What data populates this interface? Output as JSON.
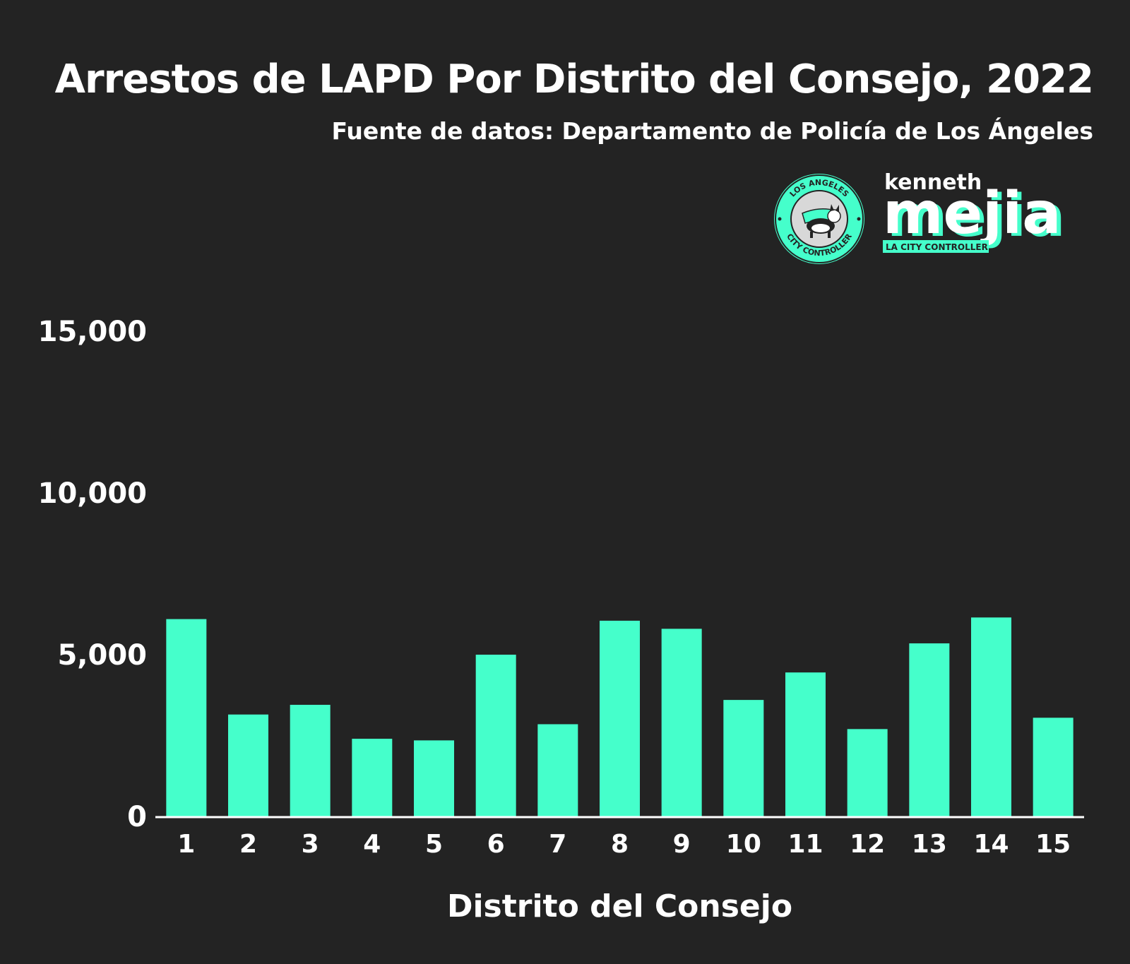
{
  "header": {
    "title": "Arrestos de LAPD Por Distrito del Consejo, 2022",
    "subtitle": "Fuente de datos: Departamento de Policía de Los Ángeles"
  },
  "branding": {
    "seal_top": "LOS ANGELES",
    "seal_bottom": "CITY CONTROLLER",
    "name_small": "kenneth",
    "name_big": "mejia",
    "tagline": "LA CITY CONTROLLER"
  },
  "colors": {
    "background": "#232323",
    "bar": "#45ffcb",
    "text": "#ffffff"
  },
  "chart_data": {
    "type": "bar",
    "title": "Arrestos de LAPD Por Distrito del Consejo, 2022",
    "subtitle": "Fuente de datos: Departamento de Policía de Los Ángeles",
    "xlabel": "Distrito del Consejo",
    "ylabel": "",
    "categories": [
      "1",
      "2",
      "3",
      "4",
      "5",
      "6",
      "7",
      "8",
      "9",
      "10",
      "11",
      "12",
      "13",
      "14",
      "15"
    ],
    "values": [
      6100,
      3150,
      3450,
      2400,
      2350,
      5000,
      2850,
      6050,
      5800,
      3600,
      4450,
      2700,
      5350,
      6150,
      3050
    ],
    "ylim": [
      0,
      15000
    ],
    "yticks": [
      0,
      5000,
      10000,
      15000
    ],
    "ytick_labels": [
      "0",
      "5,000",
      "10,000",
      "15,000"
    ],
    "grid": false,
    "legend": "none"
  }
}
